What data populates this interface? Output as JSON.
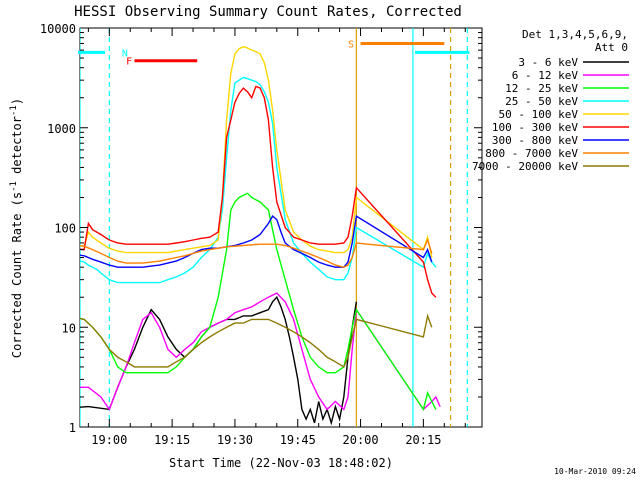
{
  "chart_data": {
    "type": "line",
    "title": "HESSI Observing Summary Count Rates, Corrected",
    "xlabel": "Start Time (22-Nov-03 18:48:02)",
    "ylabel_main": "Corrected Count Rate (s",
    "ylabel_sup1": "-1",
    "ylabel_mid": " detector",
    "ylabel_sup2": "-1",
    "ylabel_end": ")",
    "yscale": "log",
    "ylim": [
      1,
      10000
    ],
    "xlim_minutes": [
      -7,
      29
    ],
    "xticks": [
      {
        "m": 0,
        "label": "19:00"
      },
      {
        "m": 15,
        "label": "19:15"
      },
      {
        "m": 30,
        "label": "19:30"
      },
      {
        "m": 45,
        "label": "19:45"
      },
      {
        "m": 60,
        "label": "20:00"
      },
      {
        "m": 75,
        "label": "20:15"
      }
    ],
    "yticks": [
      {
        "v": 1,
        "label": "1"
      },
      {
        "v": 10,
        "label": "10"
      },
      {
        "v": 100,
        "label": "100"
      },
      {
        "v": 1000,
        "label": "1000"
      },
      {
        "v": 10000,
        "label": "10000"
      }
    ],
    "legend_title": "Det 1,3,4,5,6,9,",
    "legend_subtitle": "Att 0",
    "legend_position": "right",
    "series": [
      {
        "name": "3 - 6 keV",
        "color": "#000000",
        "x": [
          -15,
          -5,
          0,
          2,
          4,
          6,
          8,
          10,
          12,
          14,
          16,
          18,
          20,
          22,
          24,
          26,
          28,
          30,
          32,
          34,
          36,
          38,
          39,
          40,
          41,
          42,
          43,
          44,
          45,
          46,
          47,
          48,
          49,
          50,
          51,
          52,
          53,
          54,
          55,
          56,
          57,
          58,
          59
        ],
        "y": [
          1.5,
          1.6,
          1.5,
          2.5,
          4,
          6,
          10,
          15,
          12,
          8,
          6,
          5,
          6,
          8,
          10,
          11,
          12,
          12,
          13,
          13,
          14,
          15,
          18,
          20,
          16,
          12,
          8,
          5,
          3,
          1.5,
          1.2,
          1.5,
          1.1,
          1.8,
          1.2,
          1.5,
          1.1,
          1.6,
          1.2,
          2,
          5,
          10,
          18
        ]
      },
      {
        "name": "6 - 12 keV",
        "color": "#ff00ff",
        "x": [
          -15,
          -5,
          -2,
          0,
          2,
          4,
          6,
          8,
          10,
          12,
          14,
          16,
          18,
          20,
          22,
          24,
          26,
          28,
          30,
          32,
          34,
          36,
          38,
          40,
          42,
          44,
          46,
          48,
          50,
          52,
          54,
          56,
          57,
          58,
          59,
          75,
          77,
          78,
          79
        ],
        "y": [
          2.5,
          2.5,
          2,
          1.5,
          2.5,
          4,
          7,
          12,
          14,
          10,
          6,
          5,
          6,
          7,
          9,
          10,
          11,
          12,
          14,
          15,
          16,
          18,
          20,
          22,
          18,
          12,
          6,
          3,
          2,
          1.5,
          1.8,
          1.5,
          2,
          6,
          15,
          1.5,
          1.8,
          2,
          1.6
        ]
      },
      {
        "name": "12 - 25 keV",
        "color": "#00ff00",
        "x": [
          -15,
          -10,
          -6,
          -4,
          -2,
          0,
          2,
          4,
          6,
          8,
          10,
          12,
          14,
          16,
          18,
          20,
          22,
          24,
          26,
          28,
          29,
          30,
          31,
          32,
          33,
          34,
          36,
          38,
          40,
          42,
          44,
          46,
          48,
          50,
          52,
          54,
          56,
          57,
          58,
          59,
          75,
          76,
          77,
          78
        ],
        "y": [
          14,
          13,
          12,
          10,
          8,
          6,
          4,
          3.5,
          3.5,
          3.5,
          3.5,
          3.5,
          3.5,
          4,
          5,
          6,
          8,
          10,
          20,
          60,
          150,
          180,
          200,
          210,
          220,
          200,
          180,
          150,
          60,
          30,
          15,
          8,
          5,
          4,
          3.5,
          3.5,
          4,
          6,
          10,
          15,
          1.5,
          2.2,
          1.8,
          1.5
        ]
      },
      {
        "name": "25 - 50 keV",
        "color": "#00ffff",
        "x": [
          -15,
          -10,
          -6,
          -5,
          -3,
          -2,
          0,
          2,
          4,
          6,
          8,
          10,
          12,
          14,
          16,
          18,
          20,
          22,
          24,
          26,
          27,
          28,
          29,
          30,
          31,
          32,
          33,
          34,
          35,
          36,
          37,
          38,
          39,
          40,
          42,
          44,
          46,
          48,
          50,
          52,
          54,
          56,
          57,
          58,
          59,
          75,
          76,
          77,
          78
        ],
        "y": [
          55,
          50,
          45,
          42,
          38,
          35,
          30,
          28,
          28,
          28,
          28,
          28,
          28,
          30,
          32,
          35,
          40,
          50,
          60,
          80,
          150,
          500,
          1500,
          2800,
          3000,
          3200,
          3100,
          3000,
          2900,
          2700,
          2300,
          1800,
          1100,
          400,
          120,
          70,
          55,
          45,
          38,
          32,
          30,
          30,
          35,
          50,
          100,
          40,
          55,
          45,
          40
        ]
      },
      {
        "name": "50 - 100 keV",
        "color": "#ffd700",
        "x": [
          -15,
          -10,
          -6,
          -5,
          -4,
          -2,
          0,
          2,
          4,
          6,
          8,
          10,
          12,
          14,
          16,
          18,
          20,
          22,
          24,
          26,
          27,
          28,
          29,
          30,
          31,
          32,
          33,
          34,
          35,
          36,
          37,
          38,
          39,
          40,
          42,
          44,
          46,
          48,
          50,
          52,
          54,
          56,
          57,
          58,
          59,
          75,
          76,
          77
        ],
        "y": [
          70,
          68,
          65,
          90,
          80,
          70,
          62,
          58,
          56,
          56,
          56,
          56,
          56,
          56,
          58,
          60,
          62,
          64,
          66,
          75,
          200,
          1200,
          3500,
          5500,
          6200,
          6500,
          6300,
          6000,
          5800,
          5500,
          4500,
          3000,
          1500,
          600,
          150,
          90,
          75,
          65,
          60,
          58,
          56,
          56,
          60,
          80,
          200,
          60,
          80,
          50
        ]
      },
      {
        "name": "100 - 300 keV",
        "color": "#ff0000",
        "x": [
          -15,
          -10,
          -6,
          -5,
          -4,
          -2,
          0,
          2,
          4,
          6,
          8,
          10,
          12,
          14,
          16,
          18,
          20,
          22,
          24,
          26,
          27,
          28,
          29,
          30,
          31,
          32,
          33,
          34,
          35,
          36,
          37,
          38,
          39,
          40,
          42,
          44,
          46,
          48,
          50,
          52,
          54,
          56,
          57,
          58,
          59,
          75,
          76,
          77,
          78
        ],
        "y": [
          65,
          62,
          60,
          110,
          95,
          85,
          75,
          70,
          68,
          68,
          68,
          68,
          68,
          68,
          70,
          72,
          75,
          78,
          80,
          90,
          200,
          800,
          1200,
          1800,
          2200,
          2500,
          2300,
          2000,
          2600,
          2500,
          2000,
          1200,
          400,
          180,
          100,
          80,
          75,
          70,
          68,
          68,
          68,
          70,
          80,
          130,
          250,
          45,
          30,
          22,
          20
        ]
      },
      {
        "name": "300 - 800 keV",
        "color": "#0000ff",
        "x": [
          -15,
          -10,
          -6,
          -4,
          -2,
          0,
          2,
          4,
          6,
          8,
          10,
          12,
          14,
          16,
          18,
          20,
          22,
          24,
          26,
          28,
          30,
          32,
          34,
          36,
          38,
          39,
          40,
          41,
          42,
          44,
          46,
          48,
          50,
          52,
          54,
          56,
          57,
          58,
          59,
          75,
          76,
          77
        ],
        "y": [
          58,
          55,
          52,
          48,
          45,
          42,
          40,
          40,
          40,
          40,
          41,
          42,
          44,
          46,
          50,
          55,
          60,
          62,
          62,
          64,
          66,
          70,
          75,
          85,
          110,
          130,
          120,
          90,
          70,
          60,
          55,
          50,
          45,
          42,
          40,
          40,
          45,
          70,
          130,
          50,
          60,
          45
        ]
      },
      {
        "name": "800 - 7000 keV",
        "color": "#ff8000",
        "x": [
          -15,
          -10,
          -6,
          -4,
          -2,
          0,
          2,
          4,
          6,
          8,
          10,
          12,
          14,
          16,
          18,
          20,
          22,
          24,
          26,
          28,
          30,
          32,
          34,
          36,
          38,
          40,
          42,
          44,
          46,
          48,
          50,
          52,
          54,
          56,
          57,
          58,
          59,
          75,
          76,
          77
        ],
        "y": [
          70,
          68,
          65,
          60,
          55,
          50,
          46,
          44,
          44,
          44,
          45,
          46,
          48,
          50,
          52,
          55,
          58,
          60,
          62,
          64,
          65,
          66,
          67,
          68,
          68,
          68,
          66,
          62,
          58,
          54,
          50,
          46,
          42,
          40,
          42,
          50,
          70,
          60,
          75,
          55
        ]
      },
      {
        "name": "7000 - 20000 keV",
        "color": "#8b7a00",
        "x": [
          -15,
          -10,
          -6,
          -4,
          -2,
          0,
          2,
          4,
          6,
          8,
          10,
          12,
          14,
          16,
          18,
          20,
          22,
          24,
          26,
          28,
          30,
          32,
          34,
          36,
          38,
          40,
          42,
          44,
          46,
          48,
          50,
          52,
          54,
          56,
          57,
          58,
          59,
          75,
          76,
          77
        ],
        "y": [
          13,
          13,
          12,
          10,
          8,
          6,
          5,
          4.5,
          4,
          4,
          4,
          4,
          4,
          4.5,
          5,
          6,
          7,
          8,
          9,
          10,
          11,
          11,
          12,
          12,
          12,
          11,
          10,
          9,
          8,
          7,
          6,
          5,
          4.5,
          4,
          5,
          8,
          12,
          8,
          13,
          10
        ]
      }
    ],
    "markers": [
      {
        "kind": "vline",
        "m": -7,
        "color": "#00ffff",
        "dash": false
      },
      {
        "kind": "vline",
        "m": 0,
        "color": "#00ffff",
        "dash": true
      },
      {
        "kind": "vline",
        "m": 59,
        "color": "#d9a000",
        "dash": false
      },
      {
        "kind": "vline",
        "m": 72.5,
        "color": "#00ffff",
        "dash": false
      },
      {
        "kind": "vline",
        "m": 81.5,
        "color": "#d9a000",
        "dash": true
      },
      {
        "kind": "vline",
        "m": 85.5,
        "color": "#00ffff",
        "dash": true
      }
    ],
    "bars": [
      {
        "label": "",
        "color": "#00ffff",
        "m1": -16,
        "m2": -1,
        "v": 5700
      },
      {
        "label": "N",
        "color": "#00ffff",
        "m1": null,
        "m2": null,
        "v": 5700,
        "label_m": 3
      },
      {
        "label": "F",
        "color": "#ff0000",
        "m1": 6,
        "m2": 21,
        "v": 4700,
        "label_m": 4
      },
      {
        "label": "S",
        "color": "#ff8000",
        "m1": 60,
        "m2": 80,
        "v": 7000,
        "label_m": 57
      },
      {
        "label": "",
        "color": "#00ffff",
        "m1": 73,
        "m2": 86,
        "v": 5700
      }
    ],
    "timestamp": "10-Mar-2010 09:24"
  }
}
